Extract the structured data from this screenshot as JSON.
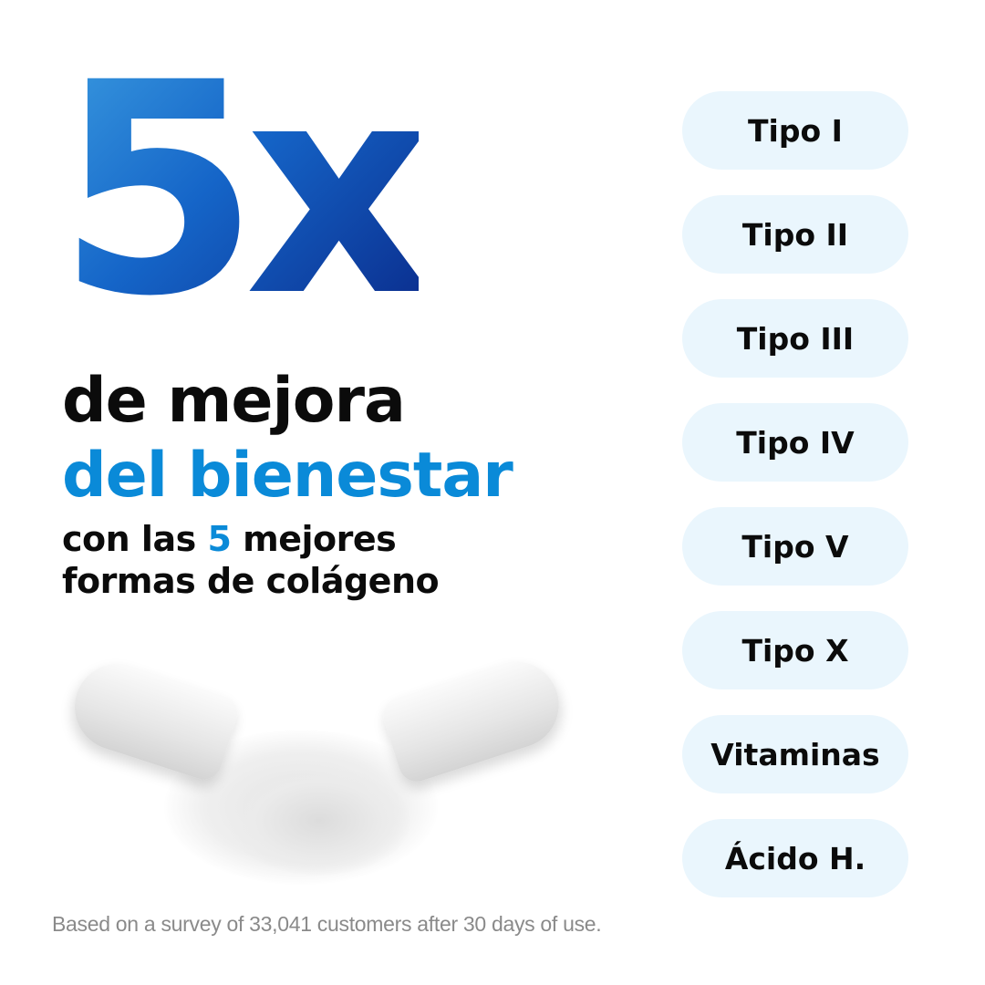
{
  "headline": {
    "multiplier": "5x",
    "line1": "de mejora",
    "line2": "del bienestar",
    "line3_pre": "con las ",
    "line3_highlight": "5",
    "line3_post": " mejores",
    "line4": "formas de colágeno"
  },
  "colors": {
    "accent": "#0a8ad8",
    "pill_bg": "#eaf6fd",
    "text": "#0b0b0b"
  },
  "pills": [
    "Tipo I",
    "Tipo II",
    "Tipo III",
    "Tipo IV",
    "Tipo V",
    "Tipo X",
    "Vitaminas",
    "Ácido H."
  ],
  "footnote": "Based on a survey of 33,041 customers after 30 days of use."
}
